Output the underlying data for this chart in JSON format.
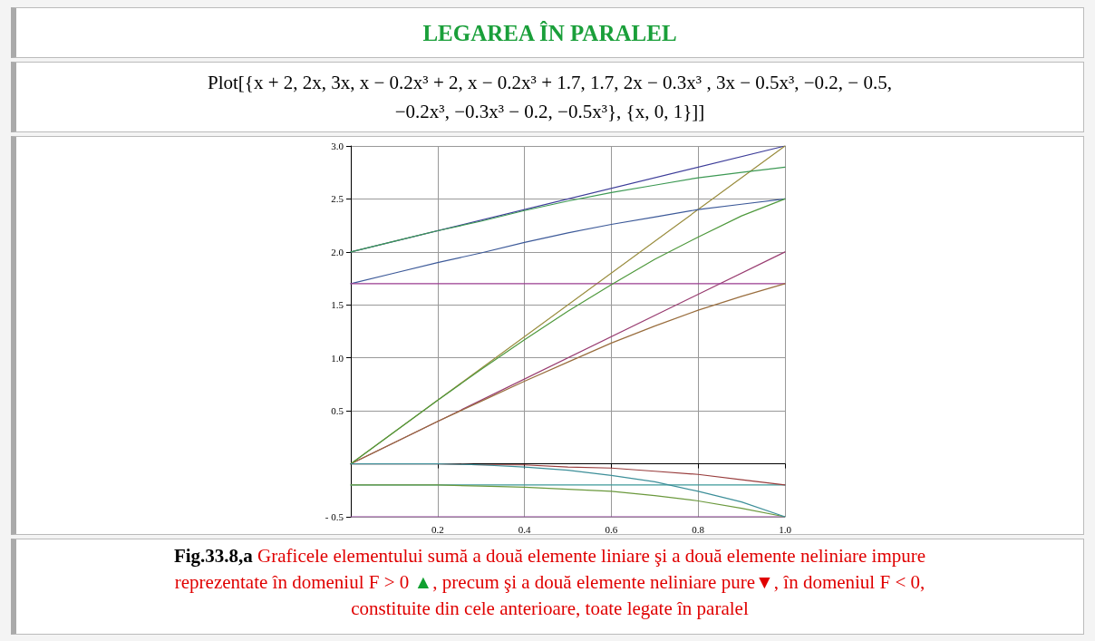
{
  "chart_data": {
    "type": "line",
    "title": "LEGAREA ÎN PARALEL",
    "subtitle": "Plot[{x + 2, 2x, 3x, x − 0.2x³ + 2, x − 0.2x³ + 1.7, 1.7, 2x − 0.3x³ , 3x − 0.5x³, −0.2,   − 0.5, −0.2x³, −0.3x³ − 0.2, −0.5x³}, {x, 0, 1}]]",
    "annotations": [
      "Fig.33.8,a",
      " Graficele elementului sumă a două elemente liniare şi a două elemente neliniare impure reprezentate în domeniul F > 0 ",
      "▲",
      ", precum şi a două elemente neliniare pure",
      "▼",
      ", în domeniul F < 0, constituite din cele anterioare, toate legate în paralel"
    ],
    "series": [
      {
        "color": "#3d3d99",
        "x": [
          0,
          1
        ],
        "values": [
          2,
          3
        ]
      },
      {
        "color": "#993d71",
        "x": [
          0,
          1
        ],
        "values": [
          0,
          2
        ]
      },
      {
        "color": "#998c3d",
        "x": [
          0,
          1
        ],
        "values": [
          0,
          3
        ]
      },
      {
        "color": "#3d9954",
        "x": [
          0,
          0.1,
          0.2,
          0.3,
          0.4,
          0.5,
          0.6,
          0.7,
          0.8,
          0.9,
          1
        ],
        "values": [
          2,
          2.1,
          2.2,
          2.29,
          2.39,
          2.48,
          2.56,
          2.63,
          2.7,
          2.75,
          2.8
        ]
      },
      {
        "color": "#3d5a99",
        "x": [
          0,
          0.1,
          0.2,
          0.3,
          0.4,
          0.5,
          0.6,
          0.7,
          0.8,
          0.9,
          1
        ],
        "values": [
          1.7,
          1.8,
          1.9,
          1.99,
          2.09,
          2.18,
          2.26,
          2.33,
          2.4,
          2.45,
          2.5
        ]
      },
      {
        "color": "#993d90",
        "x": [
          0,
          1
        ],
        "values": [
          1.7,
          1.7
        ]
      },
      {
        "color": "#996d3d",
        "x": [
          0,
          0.1,
          0.2,
          0.3,
          0.4,
          0.5,
          0.6,
          0.7,
          0.8,
          0.9,
          1
        ],
        "values": [
          0,
          0.2,
          0.4,
          0.59,
          0.78,
          0.96,
          1.14,
          1.3,
          1.45,
          1.58,
          1.7
        ]
      },
      {
        "color": "#4f993d",
        "x": [
          0,
          0.1,
          0.2,
          0.3,
          0.4,
          0.5,
          0.6,
          0.7,
          0.8,
          0.9,
          1
        ],
        "values": [
          0,
          0.3,
          0.6,
          0.89,
          1.17,
          1.44,
          1.69,
          1.93,
          2.14,
          2.34,
          2.5
        ]
      },
      {
        "color": "#3d9999",
        "x": [
          0,
          1
        ],
        "values": [
          -0.2,
          -0.2
        ]
      },
      {
        "color": "#8f3d99",
        "x": [
          0,
          1
        ],
        "values": [
          -0.5,
          -0.5
        ]
      },
      {
        "color": "#993d3d",
        "x": [
          0,
          0.1,
          0.2,
          0.3,
          0.4,
          0.5,
          0.6,
          0.7,
          0.8,
          0.9,
          1
        ],
        "values": [
          0,
          0,
          0,
          -0.01,
          -0.01,
          -0.03,
          -0.04,
          -0.07,
          -0.1,
          -0.15,
          -0.2
        ]
      },
      {
        "color": "#6b993d",
        "x": [
          0,
          0.1,
          0.2,
          0.3,
          0.4,
          0.5,
          0.6,
          0.7,
          0.8,
          0.9,
          1
        ],
        "values": [
          -0.2,
          -0.2,
          -0.2,
          -0.21,
          -0.22,
          -0.24,
          -0.26,
          -0.3,
          -0.35,
          -0.42,
          -0.5
        ]
      },
      {
        "color": "#3d8f99",
        "x": [
          0,
          0.1,
          0.2,
          0.3,
          0.4,
          0.5,
          0.6,
          0.7,
          0.8,
          0.9,
          1
        ],
        "values": [
          0,
          0,
          0,
          -0.01,
          -0.03,
          -0.06,
          -0.11,
          -0.17,
          -0.26,
          -0.36,
          -0.5
        ]
      }
    ],
    "xlim": [
      0,
      1
    ],
    "xticks": [
      0.2,
      0.4,
      0.6,
      0.8,
      {
        "value": 1,
        "label": "1.0"
      }
    ],
    "ylim": [
      -0.5,
      3
    ],
    "yticks": [
      {
        "value": -0.5,
        "label": "- 0.5"
      },
      0.5,
      {
        "value": 1,
        "label": "1.0"
      },
      1.5,
      {
        "value": 2,
        "label": "2.0"
      },
      2.5,
      {
        "value": 3,
        "label": "3.0"
      }
    ],
    "grid": true,
    "marker": "none",
    "line_style": "solid"
  }
}
